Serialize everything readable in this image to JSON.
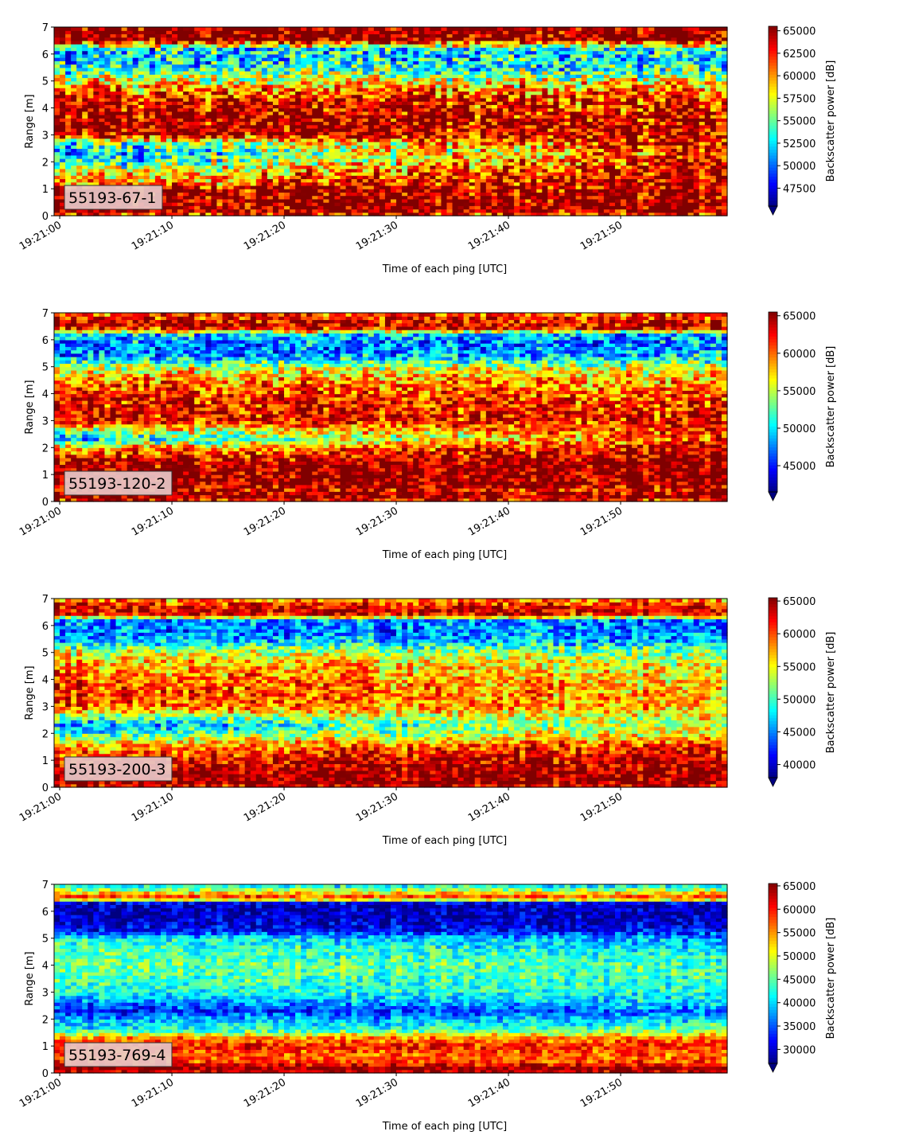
{
  "chart_data": [
    {
      "type": "heatmap",
      "label": "55193-67-1",
      "xlabel": "Time of each ping [UTC]",
      "ylabel": "Range [m]",
      "colorbar_label": "Backscatter power [dB]",
      "colormap": "jet",
      "x_ticks": [
        "19:21:00",
        "19:21:10",
        "19:21:20",
        "19:21:30",
        "19:21:40",
        "19:21:50"
      ],
      "xlim_seconds": [
        -0.5,
        59.5
      ],
      "ylim": [
        0,
        7
      ],
      "y_ticks": [
        0,
        1,
        2,
        3,
        4,
        5,
        6,
        7
      ],
      "clim": [
        45500,
        65500
      ],
      "colorbar_ticks": [
        47500,
        50000,
        52500,
        55000,
        57500,
        60000,
        62500,
        65000
      ],
      "colorbar_tick_labels": [
        "47500",
        "50000",
        "52500",
        "55000",
        "57500",
        "60000",
        "62500",
        "65000"
      ],
      "colorbar_extend": "min",
      "profile": {
        "range_m": [
          0,
          0.25,
          0.5,
          1.0,
          1.2,
          1.5,
          2.0,
          2.3,
          2.7,
          3.0,
          3.5,
          4.0,
          4.5,
          5.0,
          5.4,
          5.8,
          6.2,
          6.45,
          6.55,
          7.0
        ],
        "start": [
          62000,
          65500,
          65000,
          64500,
          60000,
          58000,
          53000,
          51000,
          53000,
          64000,
          65000,
          64000,
          62000,
          58000,
          54000,
          52000,
          52000,
          62000,
          65500,
          65500
        ],
        "end": [
          62000,
          65500,
          65000,
          64500,
          65000,
          65000,
          64000,
          63000,
          64000,
          64000,
          64000,
          63000,
          62000,
          58000,
          54000,
          53000,
          54000,
          62000,
          65500,
          65500
        ]
      }
    },
    {
      "type": "heatmap",
      "label": "55193-120-2",
      "xlabel": "Time of each ping [UTC]",
      "ylabel": "Range [m]",
      "colorbar_label": "Backscatter power [dB]",
      "colormap": "jet",
      "x_ticks": [
        "19:21:00",
        "19:21:10",
        "19:21:20",
        "19:21:30",
        "19:21:40",
        "19:21:50"
      ],
      "xlim_seconds": [
        -0.5,
        59.5
      ],
      "ylim": [
        0,
        7
      ],
      "y_ticks": [
        0,
        1,
        2,
        3,
        4,
        5,
        6,
        7
      ],
      "clim": [
        41500,
        65500
      ],
      "colorbar_ticks": [
        45000,
        50000,
        55000,
        60000,
        65000
      ],
      "colorbar_tick_labels": [
        "45000",
        "50000",
        "55000",
        "60000",
        "65000"
      ],
      "colorbar_extend": "min",
      "profile": {
        "range_m": [
          0,
          0.2,
          0.5,
          0.6,
          1.0,
          1.5,
          2.0,
          2.3,
          2.6,
          3.0,
          3.5,
          4.0,
          4.5,
          5.0,
          5.4,
          5.8,
          6.2,
          6.4,
          6.6,
          7.0
        ],
        "start": [
          62000,
          65500,
          63000,
          65500,
          65500,
          64000,
          58000,
          49000,
          53000,
          63000,
          63000,
          62000,
          60000,
          55000,
          48000,
          47000,
          50000,
          62000,
          64000,
          61000
        ],
        "end": [
          62000,
          65500,
          63000,
          65500,
          65500,
          65500,
          64000,
          62000,
          63000,
          63000,
          62000,
          61000,
          59000,
          56000,
          50000,
          48000,
          49000,
          62000,
          64000,
          61000
        ]
      }
    },
    {
      "type": "heatmap",
      "label": "55193-200-3",
      "xlabel": "Time of each ping [UTC]",
      "ylabel": "Range [m]",
      "colorbar_label": "Backscatter power [dB]",
      "colormap": "jet",
      "x_ticks": [
        "19:21:00",
        "19:21:10",
        "19:21:20",
        "19:21:30",
        "19:21:40",
        "19:21:50"
      ],
      "xlim_seconds": [
        -0.5,
        59.5
      ],
      "ylim": [
        0,
        7
      ],
      "y_ticks": [
        0,
        1,
        2,
        3,
        4,
        5,
        6,
        7
      ],
      "clim": [
        38000,
        65500
      ],
      "colorbar_ticks": [
        40000,
        45000,
        50000,
        55000,
        60000,
        65000
      ],
      "colorbar_tick_labels": [
        "40000",
        "45000",
        "50000",
        "55000",
        "60000",
        "65000"
      ],
      "colorbar_extend": "min",
      "profile": {
        "range_m": [
          0,
          0.2,
          0.5,
          1.0,
          1.5,
          2.0,
          2.3,
          2.7,
          3.0,
          3.5,
          4.0,
          4.5,
          5.0,
          5.4,
          5.8,
          6.2,
          6.4,
          6.6,
          7.0
        ],
        "start": [
          62000,
          65500,
          65000,
          62000,
          58000,
          49000,
          45000,
          53000,
          60000,
          61000,
          60000,
          58000,
          55000,
          47000,
          45000,
          46000,
          62000,
          64000,
          58000
        ],
        "end": [
          62000,
          65500,
          65000,
          64000,
          62000,
          56000,
          55000,
          56000,
          57000,
          57000,
          56000,
          55000,
          52000,
          47000,
          45000,
          45000,
          62000,
          64000,
          58000
        ]
      }
    },
    {
      "type": "heatmap",
      "label": "55193-769-4",
      "xlabel": "Time of each ping [UTC]",
      "ylabel": "Range [m]",
      "colorbar_label": "Backscatter power [dB]",
      "colormap": "jet",
      "x_ticks": [
        "19:21:00",
        "19:21:10",
        "19:21:20",
        "19:21:30",
        "19:21:40",
        "19:21:50"
      ],
      "xlim_seconds": [
        -0.5,
        59.5
      ],
      "ylim": [
        0,
        7
      ],
      "y_ticks": [
        0,
        1,
        2,
        3,
        4,
        5,
        6,
        7
      ],
      "clim": [
        27000,
        65500
      ],
      "colorbar_ticks": [
        30000,
        35000,
        40000,
        45000,
        50000,
        55000,
        60000,
        65000
      ],
      "colorbar_tick_labels": [
        "30000",
        "35000",
        "40000",
        "45000",
        "50000",
        "55000",
        "60000",
        "65000"
      ],
      "colorbar_extend": "min",
      "profile": {
        "range_m": [
          0,
          0.2,
          0.4,
          0.7,
          1.0,
          1.3,
          1.6,
          2.0,
          2.3,
          2.6,
          3.0,
          3.5,
          4.0,
          4.5,
          5.0,
          5.3,
          5.6,
          6.0,
          6.3,
          6.5,
          6.7,
          7.0
        ],
        "start": [
          62000,
          65500,
          58000,
          57000,
          60000,
          56000,
          42000,
          38000,
          32000,
          36000,
          42000,
          44000,
          46000,
          45000,
          42000,
          32000,
          30000,
          29000,
          29000,
          60000,
          52000,
          40000
        ],
        "end": [
          62000,
          65500,
          58000,
          57000,
          60000,
          56000,
          46000,
          40000,
          36000,
          40000,
          43000,
          44000,
          44000,
          42000,
          38000,
          32000,
          30000,
          29000,
          29000,
          60000,
          52000,
          40000
        ]
      }
    }
  ]
}
